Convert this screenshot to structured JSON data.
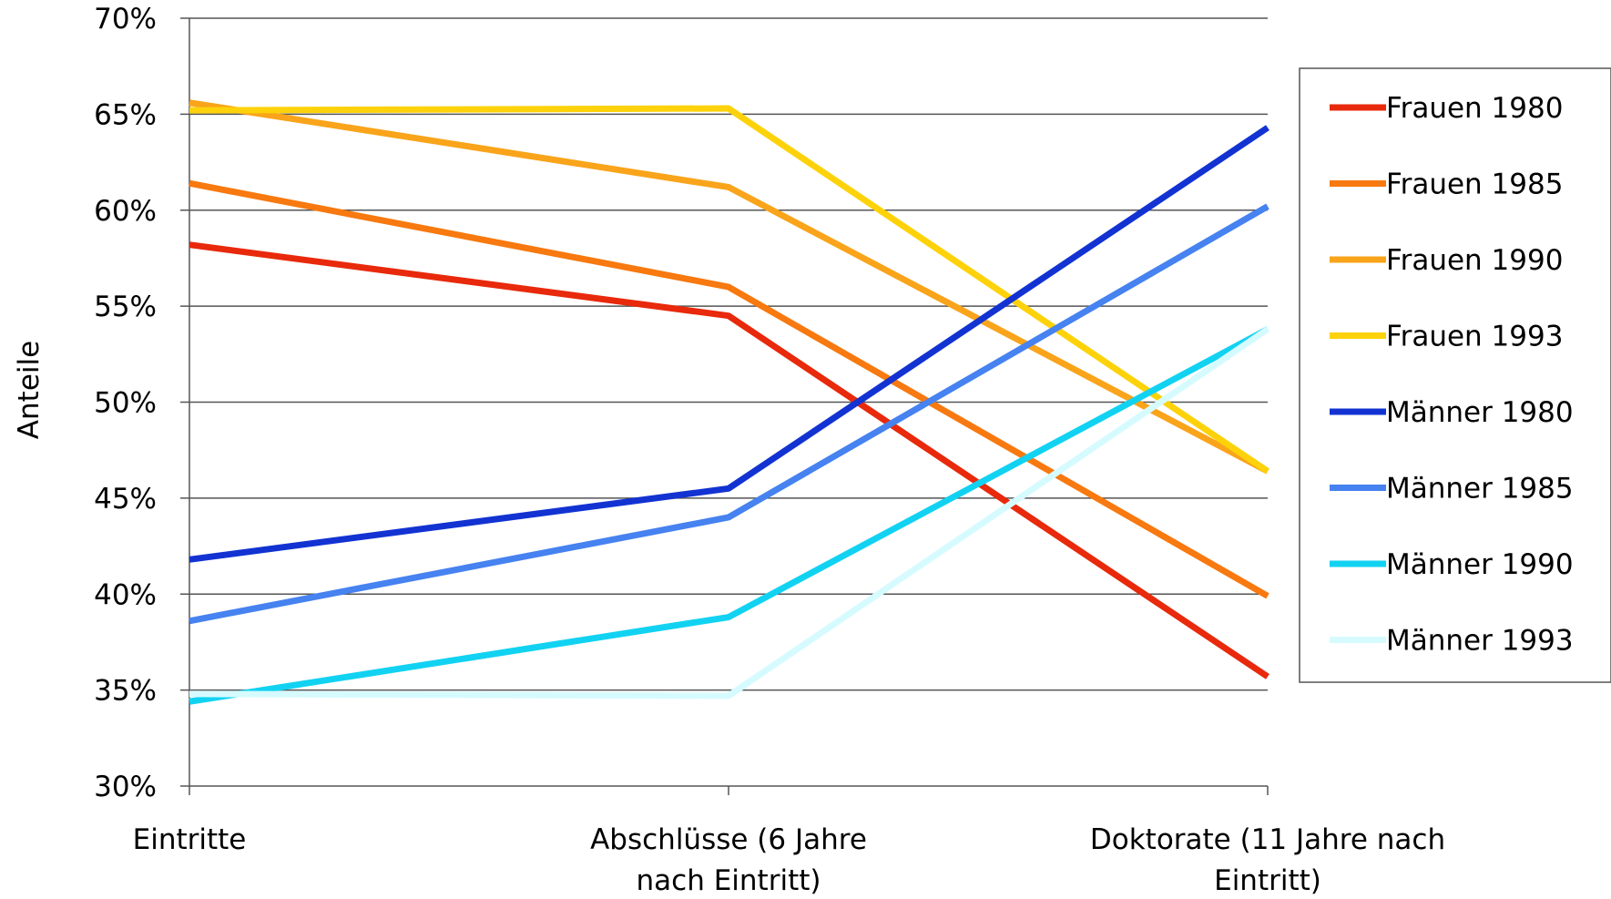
{
  "chart_data": {
    "type": "line",
    "title": "",
    "ylabel": "Anteile",
    "xlabel": "",
    "ylim": [
      0.3,
      0.7
    ],
    "yticks": [
      0.3,
      0.35,
      0.4,
      0.45,
      0.5,
      0.55,
      0.6,
      0.65,
      0.7
    ],
    "ytick_labels": [
      "30%",
      "35%",
      "40%",
      "45%",
      "50%",
      "55%",
      "60%",
      "65%",
      "70%"
    ],
    "grid": true,
    "legend_position": "right",
    "categories": [
      [
        "Eintritte"
      ],
      [
        "Abschlüsse (6 Jahre",
        "nach Eintritt)"
      ],
      [
        "Doktorate (11 Jahre nach",
        "Eintritt)"
      ]
    ],
    "series": [
      {
        "name": "Frauen 1980",
        "color": "#e8290b",
        "values": [
          0.582,
          0.545,
          0.357
        ]
      },
      {
        "name": "Frauen 1985",
        "color": "#f7790f",
        "values": [
          0.614,
          0.56,
          0.399
        ]
      },
      {
        "name": "Frauen 1990",
        "color": "#f9a41a",
        "values": [
          0.656,
          0.612,
          0.464
        ]
      },
      {
        "name": "Frauen 1993",
        "color": "#fdd20a",
        "values": [
          0.652,
          0.653,
          0.464
        ]
      },
      {
        "name": "Männer 1980",
        "color": "#1233d2",
        "values": [
          0.418,
          0.455,
          0.643
        ]
      },
      {
        "name": "Männer 1985",
        "color": "#4682f0",
        "values": [
          0.386,
          0.44,
          0.602
        ]
      },
      {
        "name": "Männer 1990",
        "color": "#12d2f2",
        "values": [
          0.344,
          0.388,
          0.538
        ]
      },
      {
        "name": "Männer 1993",
        "color": "#d6fbff",
        "values": [
          0.348,
          0.347,
          0.538
        ]
      }
    ]
  }
}
